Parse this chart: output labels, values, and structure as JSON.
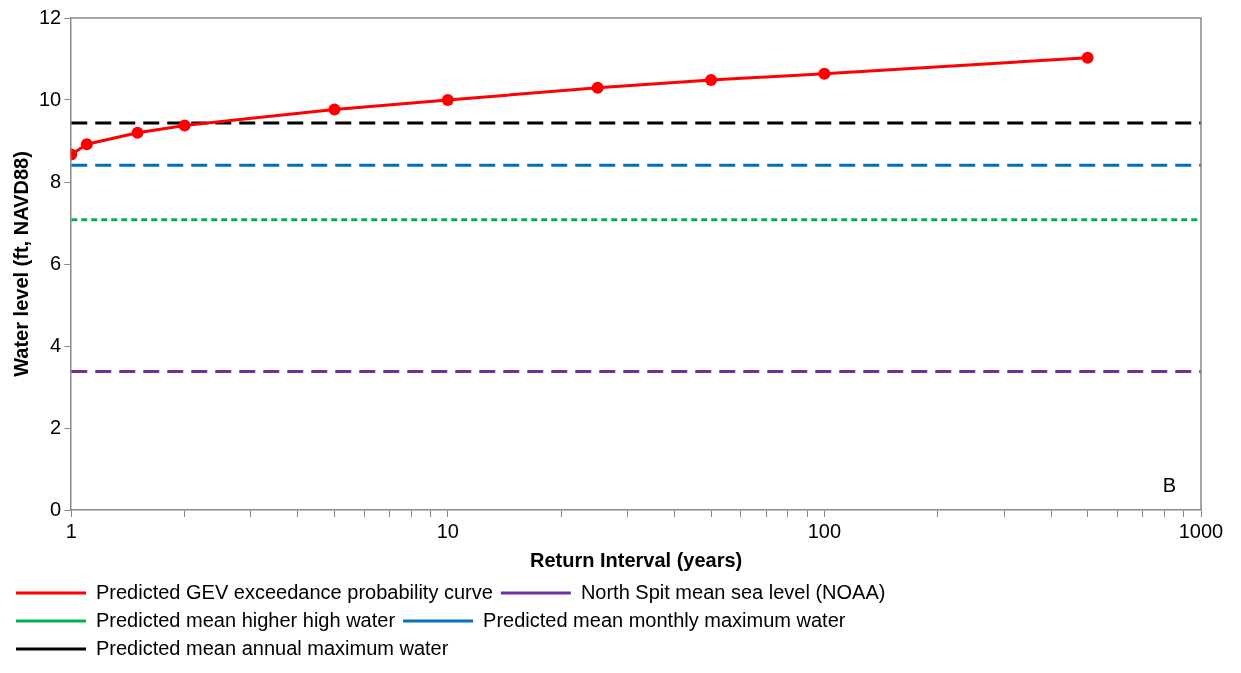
{
  "chart_data": {
    "type": "line",
    "xlabel": "Return Interval (years)",
    "ylabel": "Water level (ft, NAVD88)",
    "log": "x",
    "xlim": [
      1,
      1000
    ],
    "xticks": [
      1,
      {
        "value": 2,
        "label": null
      },
      {
        "value": 3,
        "label": null
      },
      {
        "value": 4,
        "label": null
      },
      {
        "value": 5,
        "label": null
      },
      {
        "value": 6,
        "label": null
      },
      {
        "value": 7,
        "label": null
      },
      {
        "value": 8,
        "label": null
      },
      {
        "value": 9,
        "label": null
      },
      10,
      {
        "value": 20,
        "label": null
      },
      {
        "value": 30,
        "label": null
      },
      {
        "value": 40,
        "label": null
      },
      {
        "value": 50,
        "label": null
      },
      {
        "value": 60,
        "label": null
      },
      {
        "value": 70,
        "label": null
      },
      {
        "value": 80,
        "label": null
      },
      {
        "value": 90,
        "label": null
      },
      100,
      {
        "value": 200,
        "label": null
      },
      {
        "value": 300,
        "label": null
      },
      {
        "value": 400,
        "label": null
      },
      {
        "value": 500,
        "label": null
      },
      {
        "value": 600,
        "label": null
      },
      {
        "value": 700,
        "label": null
      },
      {
        "value": 800,
        "label": null
      },
      {
        "value": 900,
        "label": null
      },
      1000
    ],
    "ylim": [
      0,
      12
    ],
    "yticks": [
      0,
      2,
      4,
      6,
      8,
      10,
      12
    ],
    "grid": false,
    "legend": "bottom",
    "annotations": [
      "B"
    ],
    "series": [
      {
        "name": "Predicted GEV exceedance probability curve",
        "color": "#ff0000",
        "marker": "circle",
        "line_style": "solid",
        "x": [
          1,
          1.1,
          1.5,
          2,
          5,
          10,
          25,
          50,
          100,
          500
        ],
        "values": [
          8.67,
          8.92,
          9.2,
          9.38,
          9.77,
          10.0,
          10.3,
          10.49,
          10.64,
          11.03
        ]
      },
      {
        "name": "North Spit mean sea level (NOAA)",
        "color": "#7030a0",
        "marker": "none",
        "line_style": "dashed",
        "x": [
          1,
          1000
        ],
        "values": [
          3.38,
          3.38
        ]
      },
      {
        "name": "Predicted mean higher high water",
        "color": "#00b050",
        "marker": "none",
        "line_style": "dotted",
        "x": [
          1,
          1000
        ],
        "values": [
          7.08,
          7.08
        ]
      },
      {
        "name": "Predicted mean monthly maximum water",
        "color": "#0070c0",
        "marker": "none",
        "line_style": "dashed",
        "x": [
          1,
          1000
        ],
        "values": [
          8.41,
          8.41
        ]
      },
      {
        "name": "Predicted mean annual maximum water",
        "color": "#000000",
        "marker": "none",
        "line_style": "dashed",
        "x": [
          1,
          1000
        ],
        "values": [
          9.44,
          9.44
        ]
      }
    ]
  }
}
